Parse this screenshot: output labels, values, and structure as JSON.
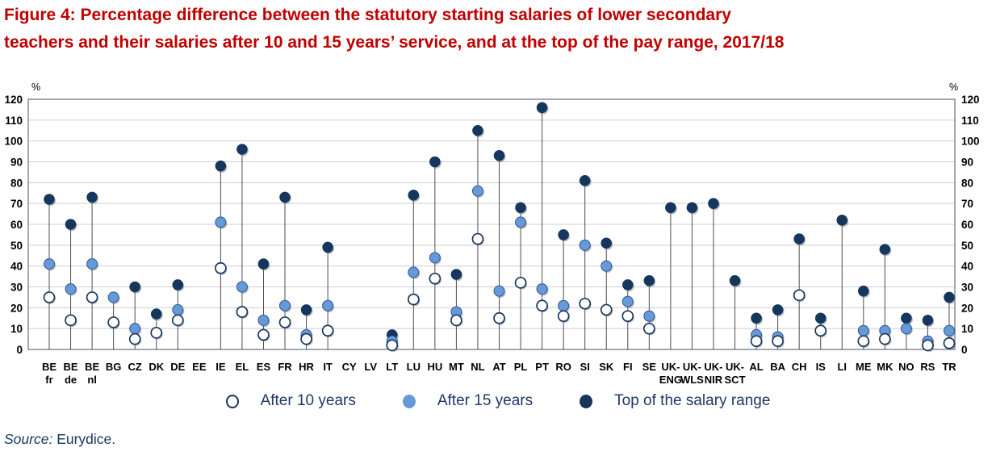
{
  "figure": {
    "title_line1": "Figure 4: Percentage difference between the statutory starting salaries of lower secondary",
    "title_line2": "teachers and their salaries after 10 and 15 years’ service, and at the top of the pay range, 2017/18",
    "source_label": "Source:",
    "source_text": "Eurydice."
  },
  "legend": {
    "items": [
      {
        "key": "after10",
        "label": "After 10 years"
      },
      {
        "key": "after15",
        "label": "After 15 years"
      },
      {
        "key": "top",
        "label": "Top of the salary range"
      }
    ]
  },
  "colors": {
    "title_red": "#C00000",
    "navy": "#17365D",
    "blue": "#6699D8",
    "text_navy": "#1F3864",
    "grid": "#C9CDD1",
    "frame": "#7B838E",
    "stem": "#4D4D4D"
  },
  "chart_data": {
    "type": "scatter",
    "title": "Percentage difference between the statutory starting salaries of lower secondary teachers and their salaries after 10 and 15 years' service, and at the top of the pay range, 2017/18",
    "unit": "%",
    "axis_label_left": "%",
    "axis_label_right": "%",
    "ylim": [
      0,
      120
    ],
    "ytick_step": 10,
    "grid": true,
    "legend_position": "bottom",
    "series": [
      {
        "key": "after10",
        "name": "After 10 years",
        "marker": "open-circle"
      },
      {
        "key": "after15",
        "name": "After 15 years",
        "marker": "blue-circle"
      },
      {
        "key": "top",
        "name": "Top of the salary range",
        "marker": "navy-circle"
      }
    ],
    "categories": [
      {
        "label": "BE",
        "sub": "fr",
        "dots": [
          {
            "s": "top",
            "v": 72
          },
          {
            "s": "after15",
            "v": 41
          },
          {
            "s": "after10",
            "v": 25
          }
        ]
      },
      {
        "label": "BE",
        "sub": "de",
        "dots": [
          {
            "s": "top",
            "v": 60
          },
          {
            "s": "after15",
            "v": 29
          },
          {
            "s": "after10",
            "v": 14
          }
        ]
      },
      {
        "label": "BE",
        "sub": "nl",
        "dots": [
          {
            "s": "top",
            "v": 73
          },
          {
            "s": "after15",
            "v": 41
          },
          {
            "s": "after10",
            "v": 25
          }
        ]
      },
      {
        "label": "BG",
        "sub": "",
        "dots": [
          {
            "s": "after15",
            "v": 25
          },
          {
            "s": "after10",
            "v": 13
          }
        ]
      },
      {
        "label": "CZ",
        "sub": "",
        "dots": [
          {
            "s": "top",
            "v": 30
          },
          {
            "s": "after15",
            "v": 10
          },
          {
            "s": "after10",
            "v": 5
          }
        ]
      },
      {
        "label": "DK",
        "sub": "",
        "dots": [
          {
            "s": "top",
            "v": 17
          },
          {
            "s": "after10",
            "v": 8
          }
        ]
      },
      {
        "label": "DE",
        "sub": "",
        "dots": [
          {
            "s": "top",
            "v": 31
          },
          {
            "s": "after15",
            "v": 19
          },
          {
            "s": "after10",
            "v": 14
          }
        ]
      },
      {
        "label": "EE",
        "sub": "",
        "dots": []
      },
      {
        "label": "IE",
        "sub": "",
        "dots": [
          {
            "s": "top",
            "v": 88
          },
          {
            "s": "after15",
            "v": 61
          },
          {
            "s": "after10",
            "v": 39
          }
        ]
      },
      {
        "label": "EL",
        "sub": "",
        "dots": [
          {
            "s": "top",
            "v": 96
          },
          {
            "s": "after15",
            "v": 30
          },
          {
            "s": "after10",
            "v": 18
          }
        ]
      },
      {
        "label": "ES",
        "sub": "",
        "dots": [
          {
            "s": "top",
            "v": 41
          },
          {
            "s": "after15",
            "v": 14
          },
          {
            "s": "after10",
            "v": 7
          }
        ]
      },
      {
        "label": "FR",
        "sub": "",
        "dots": [
          {
            "s": "top",
            "v": 73
          },
          {
            "s": "after15",
            "v": 21
          },
          {
            "s": "after10",
            "v": 13
          }
        ]
      },
      {
        "label": "HR",
        "sub": "",
        "dots": [
          {
            "s": "top",
            "v": 19
          },
          {
            "s": "after15",
            "v": 7
          },
          {
            "s": "after10",
            "v": 5
          }
        ]
      },
      {
        "label": "IT",
        "sub": "",
        "dots": [
          {
            "s": "top",
            "v": 49
          },
          {
            "s": "after15",
            "v": 21
          },
          {
            "s": "after10",
            "v": 9
          }
        ]
      },
      {
        "label": "CY",
        "sub": "",
        "dots": []
      },
      {
        "label": "LV",
        "sub": "",
        "dots": []
      },
      {
        "label": "LT",
        "sub": "",
        "dots": [
          {
            "s": "top",
            "v": 7
          },
          {
            "s": "after15",
            "v": 4
          },
          {
            "s": "after10",
            "v": 2
          }
        ]
      },
      {
        "label": "LU",
        "sub": "",
        "dots": [
          {
            "s": "top",
            "v": 74
          },
          {
            "s": "after15",
            "v": 37
          },
          {
            "s": "after10",
            "v": 24
          }
        ]
      },
      {
        "label": "HU",
        "sub": "",
        "dots": [
          {
            "s": "top",
            "v": 90
          },
          {
            "s": "after15",
            "v": 44
          },
          {
            "s": "after10",
            "v": 34
          }
        ]
      },
      {
        "label": "MT",
        "sub": "",
        "dots": [
          {
            "s": "top",
            "v": 36
          },
          {
            "s": "after15",
            "v": 18
          },
          {
            "s": "after10",
            "v": 14
          }
        ]
      },
      {
        "label": "NL",
        "sub": "",
        "dots": [
          {
            "s": "top",
            "v": 105
          },
          {
            "s": "after15",
            "v": 76
          },
          {
            "s": "after10",
            "v": 53
          }
        ]
      },
      {
        "label": "AT",
        "sub": "",
        "dots": [
          {
            "s": "top",
            "v": 93
          },
          {
            "s": "after15",
            "v": 28
          },
          {
            "s": "after10",
            "v": 15
          }
        ]
      },
      {
        "label": "PL",
        "sub": "",
        "dots": [
          {
            "s": "top",
            "v": 68
          },
          {
            "s": "after15",
            "v": 61
          },
          {
            "s": "after10",
            "v": 32
          }
        ]
      },
      {
        "label": "PT",
        "sub": "",
        "dots": [
          {
            "s": "top",
            "v": 116
          },
          {
            "s": "after15",
            "v": 29
          },
          {
            "s": "after10",
            "v": 21
          }
        ]
      },
      {
        "label": "RO",
        "sub": "",
        "dots": [
          {
            "s": "top",
            "v": 55
          },
          {
            "s": "after15",
            "v": 21
          },
          {
            "s": "after10",
            "v": 16
          }
        ]
      },
      {
        "label": "SI",
        "sub": "",
        "dots": [
          {
            "s": "top",
            "v": 81
          },
          {
            "s": "after15",
            "v": 50
          },
          {
            "s": "after10",
            "v": 22
          }
        ]
      },
      {
        "label": "SK",
        "sub": "",
        "dots": [
          {
            "s": "top",
            "v": 51
          },
          {
            "s": "after15",
            "v": 40
          },
          {
            "s": "after10",
            "v": 19
          }
        ]
      },
      {
        "label": "FI",
        "sub": "",
        "dots": [
          {
            "s": "top",
            "v": 31
          },
          {
            "s": "after15",
            "v": 23
          },
          {
            "s": "after10",
            "v": 16
          }
        ]
      },
      {
        "label": "SE",
        "sub": "",
        "dots": [
          {
            "s": "top",
            "v": 33
          },
          {
            "s": "after15",
            "v": 16
          },
          {
            "s": "after10",
            "v": 10
          }
        ]
      },
      {
        "label": "UK-",
        "sub": "ENG",
        "dots": [
          {
            "s": "top",
            "v": 68
          }
        ]
      },
      {
        "label": "UK-",
        "sub": "WLS",
        "dots": [
          {
            "s": "top",
            "v": 68
          }
        ]
      },
      {
        "label": "UK-",
        "sub": "NIR",
        "dots": [
          {
            "s": "top",
            "v": 70
          }
        ]
      },
      {
        "label": "UK-",
        "sub": "SCT",
        "dots": [
          {
            "s": "top",
            "v": 33
          }
        ]
      },
      {
        "label": "AL",
        "sub": "",
        "dots": [
          {
            "s": "top",
            "v": 15
          },
          {
            "s": "after15",
            "v": 7
          },
          {
            "s": "after10",
            "v": 4
          }
        ]
      },
      {
        "label": "BA",
        "sub": "",
        "dots": [
          {
            "s": "top",
            "v": 19
          },
          {
            "s": "after15",
            "v": 6
          },
          {
            "s": "after10",
            "v": 4
          }
        ]
      },
      {
        "label": "CH",
        "sub": "",
        "dots": [
          {
            "s": "top",
            "v": 53
          },
          {
            "s": "after10",
            "v": 26
          }
        ]
      },
      {
        "label": "IS",
        "sub": "",
        "dots": [
          {
            "s": "top",
            "v": 15
          },
          {
            "s": "after10",
            "v": 9
          }
        ]
      },
      {
        "label": "LI",
        "sub": "",
        "dots": [
          {
            "s": "top",
            "v": 62
          }
        ]
      },
      {
        "label": "ME",
        "sub": "",
        "dots": [
          {
            "s": "top",
            "v": 28
          },
          {
            "s": "after15",
            "v": 9
          },
          {
            "s": "after10",
            "v": 4
          }
        ]
      },
      {
        "label": "MK",
        "sub": "",
        "dots": [
          {
            "s": "top",
            "v": 48
          },
          {
            "s": "after15",
            "v": 9
          },
          {
            "s": "after10",
            "v": 5
          }
        ]
      },
      {
        "label": "NO",
        "sub": "",
        "dots": [
          {
            "s": "top",
            "v": 15
          },
          {
            "s": "after15",
            "v": 10
          }
        ]
      },
      {
        "label": "RS",
        "sub": "",
        "dots": [
          {
            "s": "top",
            "v": 14
          },
          {
            "s": "after15",
            "v": 4
          },
          {
            "s": "after10",
            "v": 2
          }
        ]
      },
      {
        "label": "TR",
        "sub": "",
        "dots": [
          {
            "s": "top",
            "v": 25
          },
          {
            "s": "after15",
            "v": 9
          },
          {
            "s": "after10",
            "v": 3
          }
        ]
      }
    ]
  }
}
